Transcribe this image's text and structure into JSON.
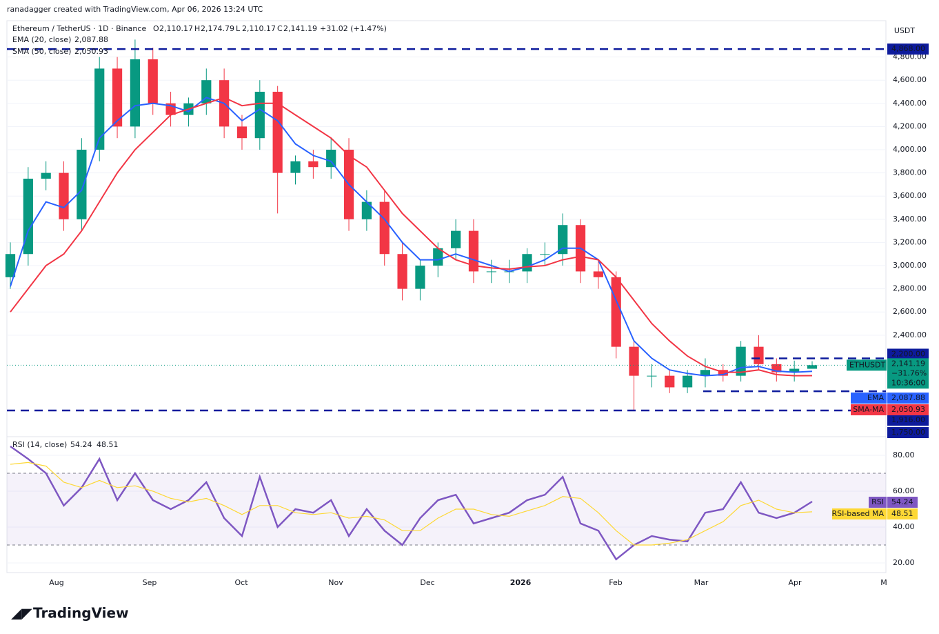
{
  "header": {
    "attribution": "ranadagger created with TradingView.com, Apr 06, 2026 13:24 UTC",
    "symbol": "Ethereum / TetherUS · 1D · Binance",
    "ohlc": [
      {
        "key": "O",
        "value": "2,110.17"
      },
      {
        "key": "H",
        "value": "2,174.79"
      },
      {
        "key": "L",
        "value": "2,110.17"
      },
      {
        "key": "C",
        "value": "2,141.19"
      }
    ],
    "change": "+31.02 (+1.47%)"
  },
  "footer": {
    "brand": "TradingView"
  },
  "chart_data": [
    {
      "type": "candlestick",
      "unit": "USDT",
      "up_color": "#089981",
      "down_color": "#f23645",
      "open": [
        2900,
        3100,
        3750,
        3800,
        3400,
        4000,
        4700,
        4200,
        4780,
        4400,
        4300,
        4400,
        4600,
        4200,
        4100,
        4500,
        3800,
        3900,
        3850,
        4000,
        3400,
        3550,
        3100,
        2800,
        3000,
        3150,
        3300,
        2950,
        2950,
        2950,
        3100,
        3100,
        3350,
        2950,
        2900,
        2300,
        2050,
        2050,
        1950,
        2050,
        2100,
        2050,
        2300,
        2150,
        2080,
        2110.17
      ],
      "high": [
        3200,
        3850,
        3900,
        3900,
        4100,
        4800,
        4800,
        4950,
        4880,
        4500,
        4450,
        4700,
        4700,
        4300,
        4600,
        4550,
        3950,
        4000,
        4100,
        4100,
        3650,
        3650,
        3200,
        3050,
        3200,
        3400,
        3400,
        3050,
        3050,
        3150,
        3200,
        3450,
        3400,
        3050,
        2950,
        2350,
        2150,
        2100,
        2100,
        2200,
        2150,
        2350,
        2400,
        2200,
        2180,
        2174.79
      ],
      "low": [
        2800,
        3000,
        3650,
        3300,
        3300,
        3900,
        4100,
        4100,
        4300,
        4200,
        4200,
        4300,
        4100,
        4000,
        4000,
        3450,
        3700,
        3750,
        3750,
        3300,
        3300,
        3000,
        2700,
        2700,
        2900,
        3050,
        2850,
        2850,
        2850,
        2850,
        3000,
        3000,
        2850,
        2800,
        2200,
        1750,
        1950,
        1900,
        1900,
        1950,
        2000,
        2000,
        2100,
        2000,
        2000,
        2110.17
      ],
      "close": [
        3100,
        3750,
        3800,
        3400,
        4000,
        4700,
        4200,
        4780,
        4400,
        4300,
        4400,
        4600,
        4200,
        4100,
        4500,
        3800,
        3900,
        3850,
        4000,
        3400,
        3550,
        3100,
        2800,
        3000,
        3150,
        3300,
        2950,
        2950,
        2950,
        3100,
        3100,
        3350,
        2950,
        2900,
        2300,
        2050,
        2050,
        1950,
        2050,
        2100,
        2050,
        2300,
        2150,
        2080,
        2110.17,
        2141.19
      ],
      "series": [
        {
          "name": "EMA (20, close)",
          "tag": "EMA",
          "color": "#2962ff",
          "last_value_label": "2,087.88",
          "values": [
            2820,
            3300,
            3550,
            3500,
            3650,
            4100,
            4250,
            4380,
            4400,
            4380,
            4330,
            4450,
            4400,
            4250,
            4350,
            4250,
            4050,
            3950,
            3900,
            3700,
            3550,
            3400,
            3200,
            3050,
            3050,
            3100,
            3050,
            3000,
            2950,
            2990,
            3050,
            3150,
            3150,
            3050,
            2700,
            2350,
            2200,
            2100,
            2070,
            2050,
            2060,
            2120,
            2130,
            2090,
            2080,
            2087.88
          ]
        },
        {
          "name": "SMA (50, close)",
          "tag": "SMA-MA",
          "color": "#f23645",
          "last_value_label": "2,050.93",
          "values": [
            2600,
            2800,
            3000,
            3100,
            3300,
            3550,
            3800,
            4000,
            4150,
            4300,
            4350,
            4400,
            4450,
            4380,
            4400,
            4400,
            4300,
            4200,
            4100,
            3950,
            3850,
            3650,
            3450,
            3300,
            3150,
            3050,
            3000,
            2980,
            2970,
            2990,
            3000,
            3050,
            3080,
            3050,
            2900,
            2700,
            2500,
            2350,
            2220,
            2130,
            2080,
            2080,
            2100,
            2060,
            2050,
            2050.93
          ]
        }
      ],
      "last_price": {
        "symbol": "ETHUSDT",
        "label": "2,141.19",
        "change": "−31.76%",
        "countdown": "10:36:00"
      },
      "ylim": [
        1542,
        5113
      ],
      "yticks": [
        {
          "value": 2400,
          "label": "2,400.00"
        },
        {
          "value": 2600,
          "label": "2,600.00"
        },
        {
          "value": 2800,
          "label": "2,800.00"
        },
        {
          "value": 3000,
          "label": "3,000.00"
        },
        {
          "value": 3200,
          "label": "3,200.00"
        },
        {
          "value": 3400,
          "label": "3,400.00"
        },
        {
          "value": 3600,
          "label": "3,600.00"
        },
        {
          "value": 3800,
          "label": "3,800.00"
        },
        {
          "value": 4000,
          "label": "4,000.00"
        },
        {
          "value": 4200,
          "label": "4,200.00"
        },
        {
          "value": 4400,
          "label": "4,400.00"
        },
        {
          "value": 4600,
          "label": "4,600.00"
        },
        {
          "value": 4800,
          "label": "4,800.00"
        }
      ],
      "levels": [
        {
          "value": 4868,
          "label": "4,868.00"
        },
        {
          "value": 2200,
          "label": "2,200.00"
        },
        {
          "value": 1916,
          "label": "1,916.00"
        },
        {
          "value": 1750,
          "label": "1,750.00"
        }
      ],
      "xtick_labels": [
        "Aug",
        "Sep",
        "Oct",
        "Nov",
        "Dec",
        "2026",
        "Feb",
        "Mar",
        "Apr",
        "M"
      ]
    },
    {
      "type": "line",
      "title": "RSI (14, close)",
      "ylim": [
        14.6,
        87.7
      ],
      "bands": [
        30,
        70
      ],
      "yticks": [
        {
          "value": 20,
          "label": "20.00"
        },
        {
          "value": 40,
          "label": "40.00"
        },
        {
          "value": 60,
          "label": "60.00"
        },
        {
          "value": 80,
          "label": "80.00"
        }
      ],
      "series": [
        {
          "name": "RSI",
          "color": "#7e57c2",
          "values": [
            85,
            78,
            70,
            52,
            62,
            78,
            55,
            70,
            55,
            50,
            55,
            65,
            45,
            35,
            68,
            40,
            50,
            48,
            55,
            35,
            50,
            38,
            30,
            45,
            55,
            58,
            42,
            45,
            48,
            55,
            58,
            68,
            42,
            38,
            22,
            30,
            35,
            33,
            32,
            48,
            50,
            65,
            48,
            45,
            48,
            54.24
          ]
        },
        {
          "name": "RSI-based MA",
          "color": "#fdd835",
          "values": [
            75,
            76,
            74,
            65,
            62,
            66,
            62,
            63,
            60,
            56,
            54,
            56,
            52,
            47,
            52,
            52,
            48,
            47,
            48,
            45,
            46,
            44,
            38,
            38,
            45,
            50,
            50,
            47,
            46,
            49,
            52,
            57,
            56,
            48,
            38,
            30,
            30,
            31,
            33,
            38,
            43,
            52,
            55,
            50,
            48,
            48.51
          ]
        }
      ]
    }
  ]
}
